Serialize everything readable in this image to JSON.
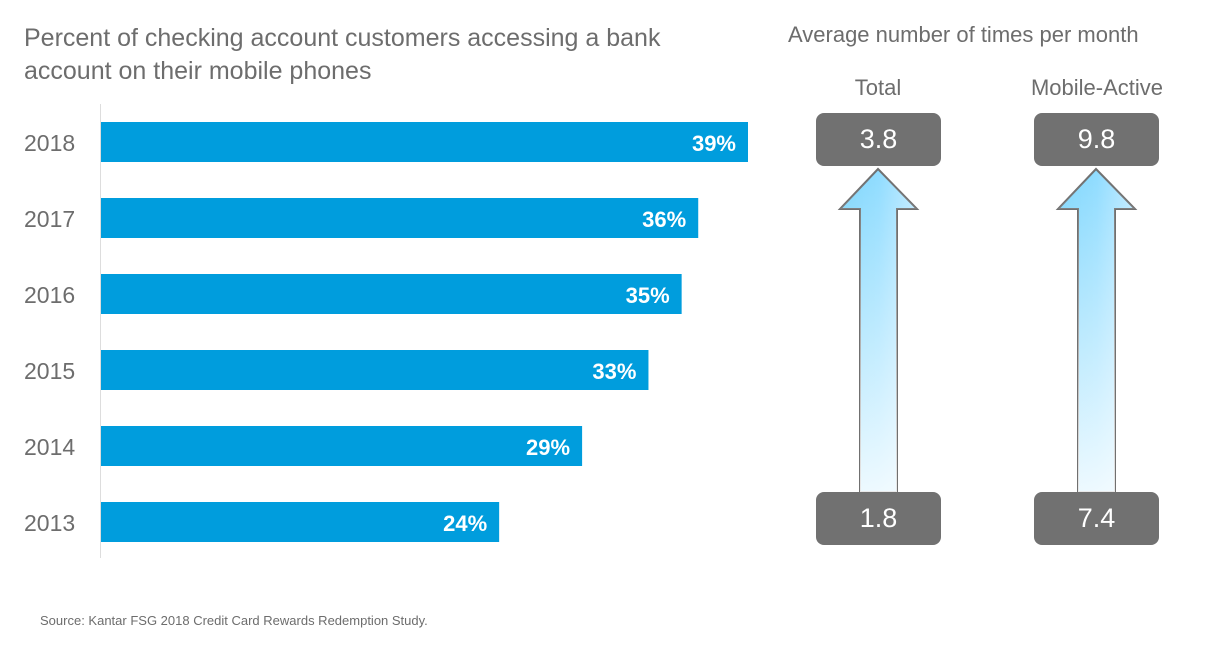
{
  "chart_data": [
    {
      "type": "bar",
      "orientation": "horizontal",
      "title": "Percent of checking account customers accessing a bank account on their mobile phones",
      "categories": [
        "2018",
        "2017",
        "2016",
        "2015",
        "2014",
        "2013"
      ],
      "values": [
        39,
        36,
        35,
        33,
        29,
        24
      ],
      "labels": [
        "39%",
        "36%",
        "35%",
        "33%",
        "29%",
        "24%"
      ],
      "xlim": [
        0,
        39
      ],
      "color": "#009ddd"
    },
    {
      "type": "table",
      "title": "Average number of times per month",
      "columns": [
        {
          "name": "Total",
          "from": "1.8",
          "to": "3.8"
        },
        {
          "name": "Mobile-Active",
          "from": "7.4",
          "to": "9.8"
        }
      ]
    }
  ],
  "source": "Source: Kantar FSG 2018 Credit Card Rewards Redemption Study."
}
